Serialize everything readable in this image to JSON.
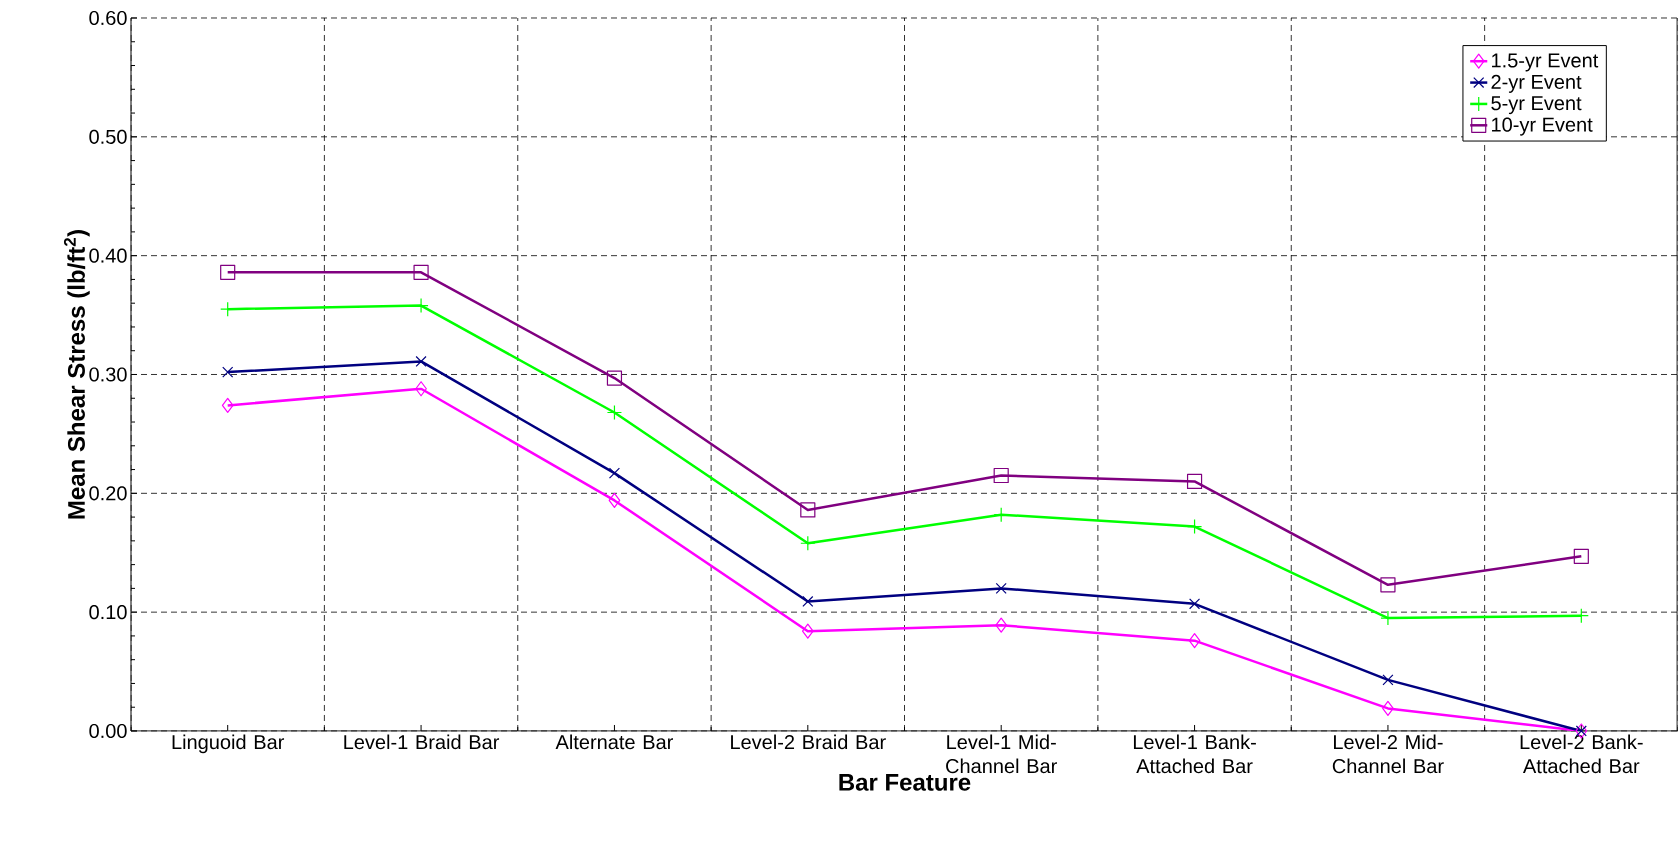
{
  "chart_data": {
    "type": "line",
    "xlabel": "Bar Feature",
    "ylabel": "Mean Shear Stress (lb/ft$^{2}$)",
    "categories": [
      "Linguoid Bar",
      "Level-1 Braid Bar",
      "Alternate Bar",
      "Level-2 Braid Bar",
      "Level-1 Mid-Channel Bar",
      "Level-1 Bank-Attached Bar",
      "Level-2 Mid-Channel Bar",
      "Level-2 Bank-Attached Bar"
    ],
    "series": [
      {
        "name": "1.5-yr Event",
        "color": "#ff00ff",
        "marker": "diamond",
        "values": [
          0.274,
          0.288,
          0.194,
          0.084,
          0.089,
          0.076,
          0.019,
          0.0
        ]
      },
      {
        "name": "2-yr Event",
        "color": "#000080",
        "marker": "cross",
        "values": [
          0.302,
          0.311,
          0.217,
          0.109,
          0.12,
          0.107,
          0.043,
          0.0
        ]
      },
      {
        "name": "5-yr Event",
        "color": "#00ff00",
        "marker": "plus",
        "values": [
          0.355,
          0.358,
          0.268,
          0.158,
          0.182,
          0.172,
          0.095,
          0.097
        ]
      },
      {
        "name": "10-yr Event",
        "color": "#800080",
        "marker": "square",
        "values": [
          0.386,
          0.386,
          0.297,
          0.186,
          0.215,
          0.21,
          0.123,
          0.147
        ]
      }
    ],
    "ylim": [
      0,
      0.6
    ],
    "yticks": [
      {
        "value": 0,
        "label": "0.00"
      },
      {
        "value": 0.1,
        "label": "0.10"
      },
      {
        "value": 0.2,
        "label": "0.20"
      },
      {
        "value": 0.3,
        "label": "0.30"
      },
      {
        "value": 0.4,
        "label": "0.40"
      },
      {
        "value": 0.5,
        "label": "0.50"
      },
      {
        "value": 0.6,
        "label": "0.60"
      }
    ],
    "grid": true,
    "legend": "top right",
    "line_style": "solid"
  }
}
